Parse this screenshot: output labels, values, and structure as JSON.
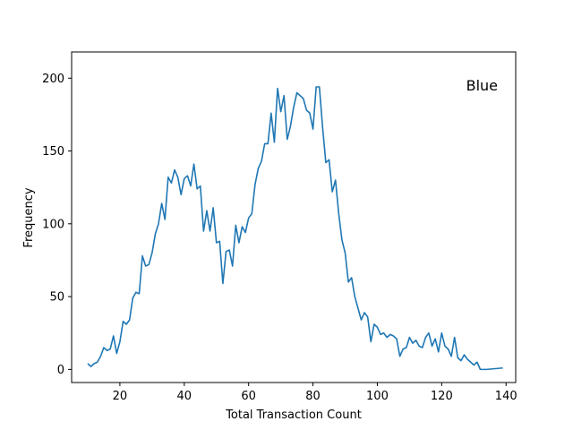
{
  "chart_data": {
    "type": "line",
    "xlabel": "Total Transaction Count",
    "ylabel": "Frequency",
    "annotation": "Blue",
    "xlim": [
      5,
      143
    ],
    "ylim": [
      -9,
      218
    ],
    "xticks": [
      20,
      40,
      60,
      80,
      100,
      120,
      140
    ],
    "yticks": [
      0,
      50,
      100,
      150,
      200
    ],
    "grid": false,
    "color": "#1f77b4",
    "series": [
      {
        "x": [
          10,
          11,
          12,
          13,
          14,
          15,
          16,
          17,
          18,
          19,
          20,
          21,
          22,
          23,
          24,
          25,
          26,
          27,
          28,
          29,
          30,
          31,
          32,
          33,
          34,
          35,
          36,
          37,
          38,
          39,
          40,
          41,
          42,
          43,
          44,
          45,
          46,
          47,
          48,
          49,
          50,
          51,
          52,
          53,
          54,
          55,
          56,
          57,
          58,
          59,
          60,
          61,
          62,
          63,
          64,
          65,
          66,
          67,
          68,
          69,
          70,
          71,
          72,
          73,
          74,
          75,
          76,
          77,
          78,
          79,
          80,
          81,
          82,
          83,
          84,
          85,
          86,
          87,
          88,
          89,
          90,
          91,
          92,
          93,
          94,
          95,
          96,
          97,
          98,
          99,
          100,
          101,
          102,
          103,
          104,
          105,
          106,
          107,
          108,
          109,
          110,
          111,
          112,
          113,
          114,
          115,
          116,
          117,
          118,
          119,
          120,
          121,
          122,
          123,
          124,
          125,
          126,
          127,
          128,
          129,
          130,
          131,
          132,
          134,
          139
        ],
        "y": [
          4,
          2,
          4,
          5,
          9,
          15,
          13,
          14,
          23,
          11,
          19,
          33,
          31,
          34,
          49,
          53,
          52,
          78,
          71,
          72,
          80,
          93,
          100,
          114,
          103,
          132,
          128,
          137,
          132,
          120,
          131,
          133,
          126,
          141,
          124,
          126,
          95,
          109,
          95,
          111,
          87,
          88,
          59,
          81,
          82,
          71,
          99,
          87,
          98,
          94,
          104,
          107,
          127,
          138,
          143,
          155,
          155,
          176,
          156,
          193,
          177,
          188,
          158,
          167,
          180,
          190,
          188,
          186,
          178,
          176,
          165,
          194,
          194,
          166,
          142,
          144,
          122,
          130,
          107,
          89,
          80,
          60,
          63,
          50,
          42,
          34,
          39,
          36,
          19,
          31,
          29,
          24,
          25,
          22,
          24,
          23,
          21,
          9,
          14,
          15,
          22,
          18,
          20,
          16,
          15,
          22,
          25,
          16,
          21,
          12,
          25,
          16,
          14,
          9,
          22,
          8,
          6,
          10,
          7,
          5,
          3,
          5,
          0,
          0,
          1
        ]
      }
    ]
  }
}
